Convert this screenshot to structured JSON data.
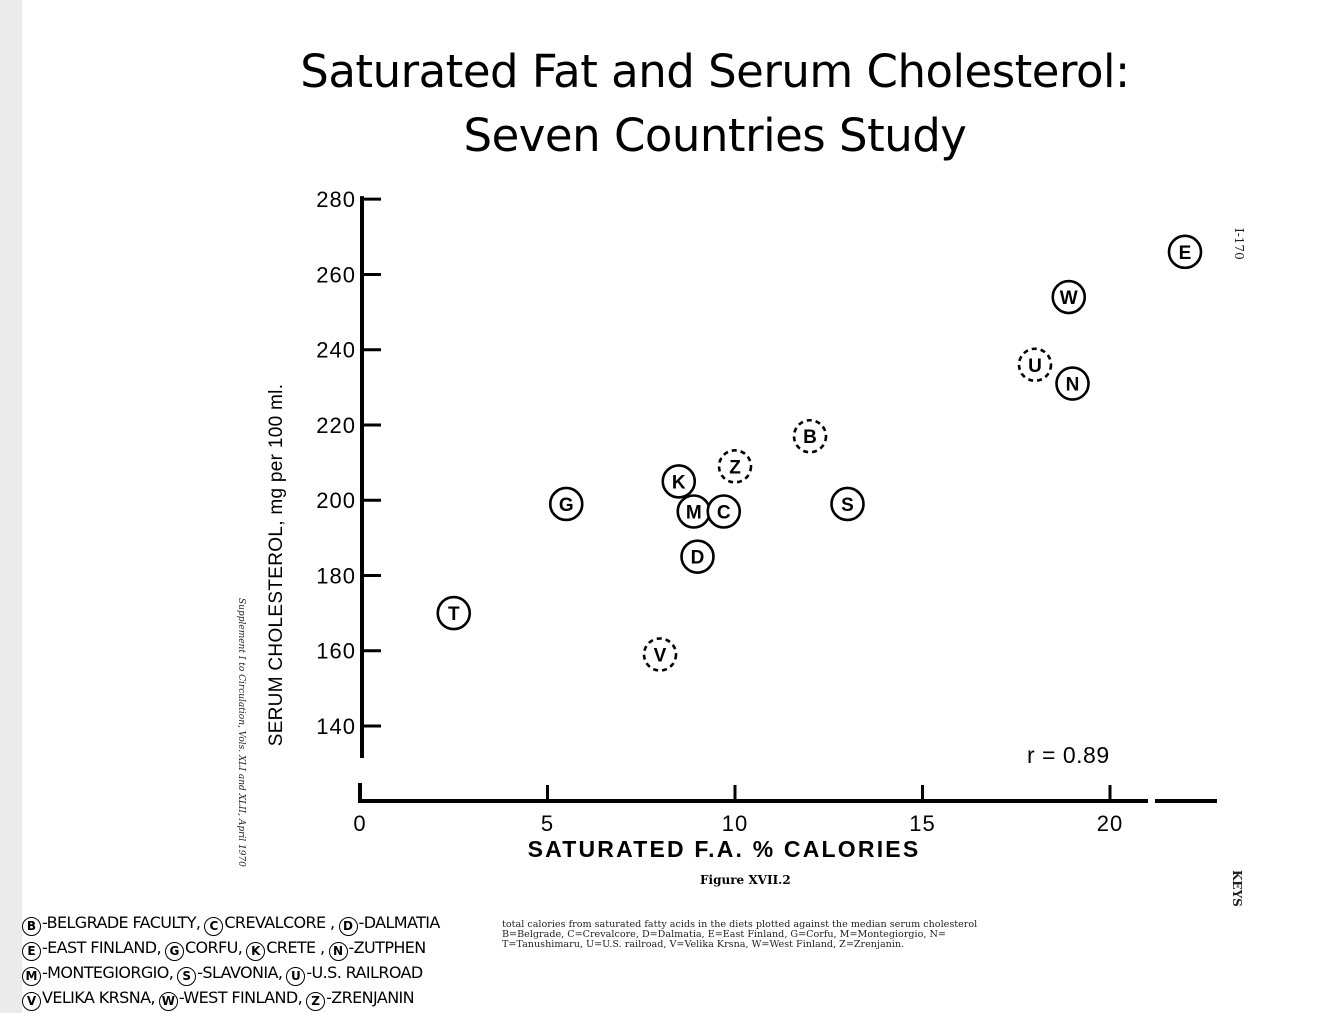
{
  "title_lines": [
    "Saturated Fat and Serum Cholesterol:",
    "Seven Countries Study"
  ],
  "chart_data": {
    "type": "scatter",
    "xlabel": "SATURATED F.A. % CALORIES",
    "ylabel": "SERUM CHOLESTEROL, mg per 100 ml.",
    "xlim": [
      0,
      22
    ],
    "ylim": [
      140,
      280
    ],
    "xticks": [
      0,
      5,
      10,
      15,
      20
    ],
    "yticks": [
      140,
      160,
      180,
      200,
      220,
      240,
      260,
      280
    ],
    "annotation": "r = 0.89",
    "points": [
      {
        "label": "T",
        "x": 2.5,
        "y": 170,
        "style": "solid"
      },
      {
        "label": "G",
        "x": 5.5,
        "y": 199,
        "style": "solid"
      },
      {
        "label": "V",
        "x": 8.0,
        "y": 159,
        "style": "dashed"
      },
      {
        "label": "K",
        "x": 8.5,
        "y": 205,
        "style": "solid"
      },
      {
        "label": "M",
        "x": 8.9,
        "y": 197,
        "style": "solid"
      },
      {
        "label": "C",
        "x": 9.7,
        "y": 197,
        "style": "solid"
      },
      {
        "label": "D",
        "x": 9.0,
        "y": 185,
        "style": "solid"
      },
      {
        "label": "Z",
        "x": 10.0,
        "y": 209,
        "style": "dashed"
      },
      {
        "label": "B",
        "x": 12.0,
        "y": 217,
        "style": "dashed"
      },
      {
        "label": "S",
        "x": 13.0,
        "y": 199,
        "style": "solid"
      },
      {
        "label": "U",
        "x": 18.0,
        "y": 236,
        "style": "dashed"
      },
      {
        "label": "N",
        "x": 19.0,
        "y": 231,
        "style": "solid"
      },
      {
        "label": "W",
        "x": 18.9,
        "y": 254,
        "style": "solid"
      },
      {
        "label": "E",
        "x": 22.0,
        "y": 266,
        "style": "solid"
      }
    ]
  },
  "figure_label": "Figure XVII.2",
  "caption_lines": [
    "total calories from saturated fatty acids in the diets plotted against the median serum cholesterol",
    "B=Belgrade, C=Crevalcore, D=Dalmatia, E=East Finland, G=Corfu, M=Montegiorgio, N=",
    "T=Tanushimaru, U=U.S. railroad, V=Velika Krsna, W=West Finland, Z=Zrenjanin."
  ],
  "legend_lines": [
    [
      {
        "key": "B",
        "text": "-BELGRADE  FACULTY,"
      },
      {
        "key": "C",
        "text": "CREVALCORE ,"
      },
      {
        "key": "D",
        "text": "-DALMATIA"
      }
    ],
    [
      {
        "key": "E",
        "text": "-EAST FINLAND,"
      },
      {
        "key": "G",
        "text": "CORFU,"
      },
      {
        "key": "K",
        "text": "CRETE ,"
      },
      {
        "key": "N",
        "text": "-ZUTPHEN"
      }
    ],
    [
      {
        "key": "M",
        "text": "-MONTEGIORGIO,"
      },
      {
        "key": "S",
        "text": "-SLAVONIA,"
      },
      {
        "key": "U",
        "text": "-U.S. RAILROAD"
      }
    ],
    [
      {
        "key": "V",
        "text": "VELIKA KRSNA,"
      },
      {
        "key": "W",
        "text": "-WEST FINLAND,"
      },
      {
        "key": "Z",
        "text": "-ZRENJANIN"
      }
    ]
  ],
  "side_notes": {
    "left": "Supplement I to Circulation, Vols. XLI and XLII, April 1970",
    "right_top": "I-170",
    "right_bottom": "KEYS"
  }
}
